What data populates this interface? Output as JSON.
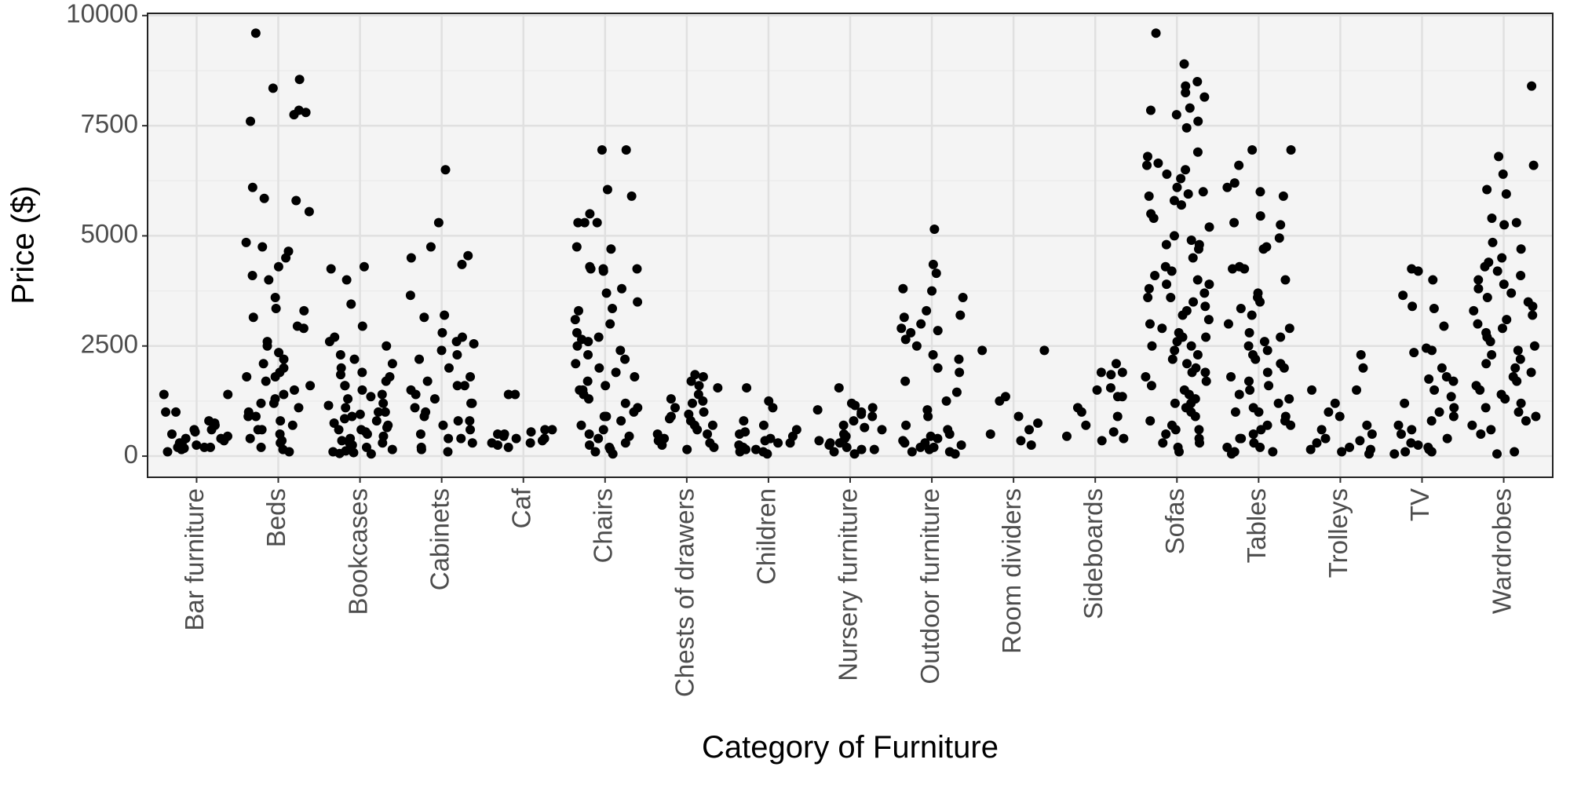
{
  "chart_data": {
    "type": "strip",
    "x_label": "Category of Furniture",
    "y_label": "Price ($)",
    "color": "#000000",
    "grid": true,
    "ylim": [
      -480,
      10050
    ],
    "yticks": [
      0,
      2500,
      5000,
      7500,
      10000
    ],
    "categories": [
      "Bar furniture",
      "Beds",
      "Bookcases",
      "Cabinets",
      "Caf",
      "Chairs",
      "Chests of drawers",
      "Children",
      "Nursery furniture",
      "Outdoor furniture",
      "Room dividers",
      "Sideboards",
      "Sofas",
      "Tables",
      "Trolleys",
      "TV",
      "Wardrobes"
    ],
    "values": [
      [
        1400,
        1000,
        1000,
        150,
        200,
        100,
        450,
        500,
        400,
        350,
        600,
        700,
        550,
        300,
        250,
        200,
        1400,
        800,
        750,
        400,
        300,
        200,
        180,
        600
      ],
      [
        7800,
        7750,
        7600,
        8350,
        8550,
        9600,
        7850,
        6100,
        5550,
        5850,
        5800,
        4850,
        4750,
        4650,
        4300,
        4100,
        4000,
        4500,
        3600,
        3350,
        3150,
        2950,
        2900,
        2500,
        2350,
        2200,
        2100,
        2000,
        1900,
        1800,
        1700,
        1600,
        1500,
        1400,
        1300,
        1200,
        1100,
        1000,
        900,
        800,
        700,
        600,
        500,
        400,
        300,
        200,
        100,
        1800,
        1200,
        900,
        600,
        350,
        150,
        3300,
        2600
      ],
      [
        4250,
        4300,
        3450,
        4000,
        2950,
        2700,
        2600,
        2500,
        2300,
        2200,
        2100,
        2000,
        1900,
        1800,
        1700,
        1600,
        1500,
        1400,
        1300,
        1200,
        1100,
        1000,
        900,
        800,
        700,
        600,
        500,
        400,
        300,
        200,
        100,
        50,
        1850,
        1600,
        1350,
        1150,
        950,
        750,
        550,
        350,
        150,
        80,
        1000,
        600,
        300,
        120,
        60,
        250,
        450,
        650,
        850
      ],
      [
        6500,
        5300,
        4750,
        4550,
        4500,
        4350,
        3650,
        3200,
        3150,
        2800,
        2700,
        2600,
        2550,
        2400,
        2300,
        2200,
        2000,
        1800,
        1700,
        1600,
        1500,
        1400,
        1300,
        1200,
        1100,
        1000,
        900,
        800,
        700,
        600,
        500,
        400,
        300,
        200,
        100,
        1600,
        1200,
        800,
        400,
        150
      ],
      [
        1400,
        1400,
        600,
        550,
        500,
        450,
        400,
        350,
        300,
        250,
        200,
        600,
        500,
        400,
        300
      ],
      [
        6950,
        6950,
        6050,
        5900,
        5500,
        5300,
        5300,
        5300,
        4750,
        4700,
        4300,
        4250,
        4250,
        4250,
        4200,
        3800,
        3700,
        3500,
        3350,
        3300,
        3100,
        3000,
        2800,
        2700,
        2650,
        2600,
        2500,
        2400,
        2300,
        2200,
        2100,
        2000,
        1900,
        1800,
        1700,
        1600,
        1500,
        1400,
        1300,
        1200,
        1100,
        1000,
        900,
        800,
        700,
        600,
        500,
        400,
        300,
        200,
        100,
        50,
        1500,
        900,
        450,
        250,
        150
      ],
      [
        1850,
        1800,
        1700,
        1600,
        1550,
        1400,
        1300,
        1250,
        1200,
        1100,
        1000,
        950,
        900,
        850,
        800,
        700,
        600,
        500,
        400,
        300,
        250,
        200,
        150,
        700,
        500,
        350
      ],
      [
        1550,
        1250,
        1100,
        800,
        700,
        600,
        550,
        500,
        450,
        400,
        350,
        300,
        250,
        200,
        150,
        100,
        50,
        300,
        200,
        150,
        100
      ],
      [
        1550,
        1200,
        1150,
        1100,
        1050,
        1000,
        950,
        900,
        800,
        700,
        650,
        600,
        500,
        450,
        400,
        350,
        300,
        250,
        200,
        150,
        100,
        50,
        300,
        150
      ],
      [
        5150,
        4350,
        4150,
        3800,
        3750,
        3600,
        3300,
        3200,
        3150,
        3000,
        2900,
        2850,
        2800,
        2650,
        2500,
        2300,
        2200,
        2000,
        1900,
        1700,
        1450,
        1250,
        1050,
        900,
        700,
        600,
        500,
        450,
        400,
        350,
        300,
        250,
        200,
        150,
        100,
        50,
        300,
        200,
        100
      ],
      [
        2400,
        2400,
        1350,
        1250,
        900,
        750,
        600,
        500,
        350,
        250
      ],
      [
        2100,
        1900,
        1900,
        1850,
        1550,
        1500,
        1350,
        1350,
        1100,
        1000,
        900,
        700,
        550,
        450,
        400,
        350
      ],
      [
        9600,
        8900,
        8500,
        8400,
        8250,
        8150,
        7900,
        7850,
        7750,
        7600,
        7450,
        6900,
        6800,
        6650,
        6600,
        6500,
        6400,
        6300,
        6100,
        6000,
        5950,
        5900,
        5800,
        5700,
        5500,
        5400,
        5200,
        5000,
        4900,
        4800,
        4700,
        4500,
        4300,
        4200,
        4100,
        4000,
        3900,
        3800,
        3700,
        3600,
        3500,
        3400,
        3300,
        3200,
        3100,
        3000,
        2900,
        2800,
        2700,
        2600,
        2500,
        2400,
        2300,
        2200,
        2100,
        2000,
        1900,
        1800,
        1700,
        1600,
        1500,
        1400,
        1300,
        1200,
        1100,
        1000,
        900,
        800,
        700,
        600,
        500,
        400,
        300,
        200,
        100,
        4800,
        3600,
        2500,
        1900,
        1200,
        600,
        300,
        3900,
        2700
      ],
      [
        6950,
        6950,
        6600,
        6200,
        6100,
        6000,
        5900,
        5450,
        5300,
        5250,
        4950,
        4750,
        4700,
        4300,
        4250,
        4250,
        4000,
        3700,
        3600,
        3500,
        3350,
        3200,
        3000,
        2900,
        2800,
        2700,
        2600,
        2500,
        2400,
        2300,
        2200,
        2100,
        2000,
        1900,
        1800,
        1700,
        1600,
        1500,
        1400,
        1300,
        1200,
        1100,
        1000,
        900,
        800,
        700,
        600,
        500,
        400,
        300,
        200,
        100,
        50,
        1000,
        700,
        400,
        200,
        100
      ],
      [
        2300,
        2000,
        1500,
        1500,
        1200,
        1000,
        900,
        700,
        600,
        500,
        400,
        350,
        300,
        200,
        150,
        100,
        50,
        150
      ],
      [
        4200,
        4250,
        4000,
        3650,
        3400,
        3350,
        2950,
        2450,
        2400,
        2350,
        2000,
        1800,
        1750,
        1700,
        1500,
        1350,
        1200,
        1100,
        1000,
        900,
        800,
        700,
        600,
        500,
        400,
        300,
        200,
        150,
        100,
        50,
        100,
        250
      ],
      [
        8400,
        6800,
        6600,
        6400,
        6050,
        5950,
        5400,
        5300,
        5250,
        4850,
        4700,
        4500,
        4400,
        4300,
        4200,
        4100,
        4000,
        3900,
        3800,
        3700,
        3600,
        3500,
        3400,
        3300,
        3200,
        3100,
        3000,
        2900,
        2800,
        2700,
        2600,
        2500,
        2400,
        2300,
        2200,
        2100,
        2000,
        1900,
        1800,
        1700,
        1600,
        1500,
        1400,
        1300,
        1200,
        1100,
        1000,
        900,
        800,
        700,
        600,
        500,
        100,
        50
      ]
    ]
  }
}
